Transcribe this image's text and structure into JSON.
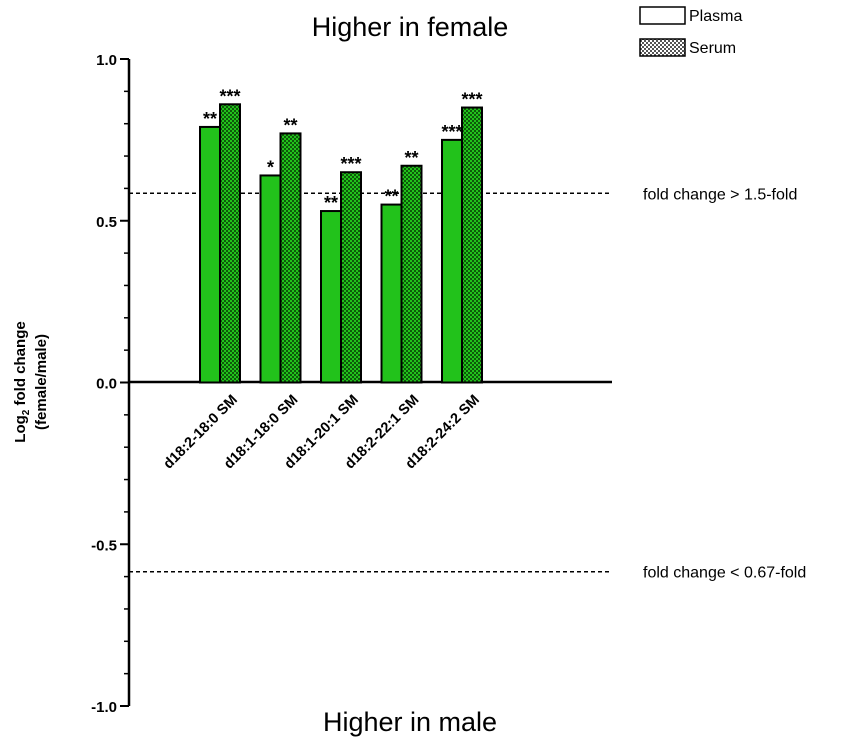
{
  "chart_data": {
    "type": "bar",
    "top_annotation": "Higher in female",
    "bottom_annotation": "Higher in male",
    "ylabel_line1_main": "Log",
    "ylabel_line1_sub": "2",
    "ylabel_line1_rest": " fold change",
    "ylabel_line2": "(female/male)",
    "ylim": [
      -1.0,
      1.0
    ],
    "yticks": [
      1.0,
      0.5,
      0.0,
      -0.5,
      -1.0
    ],
    "ytick_labels": [
      "1.0",
      "0.5",
      "0.0",
      "-0.5",
      "-1.0"
    ],
    "categories": [
      "d18:2-18:0 SM",
      "d18:1-18:0 SM",
      "d18:1-20:1 SM",
      "d18:2-22:1 SM",
      "d18:2-24:2 SM"
    ],
    "series": [
      {
        "name": "Plasma",
        "color": "#22c21b",
        "pattern": "solid",
        "values": [
          0.79,
          0.64,
          0.53,
          0.55,
          0.75
        ],
        "significance": [
          "**",
          "*",
          "**",
          "**",
          "***"
        ]
      },
      {
        "name": "Serum",
        "color": "#22c21b",
        "pattern": "crosshatch",
        "values": [
          0.86,
          0.77,
          0.65,
          0.67,
          0.85
        ],
        "significance": [
          "***",
          "**",
          "***",
          "**",
          "***"
        ]
      }
    ],
    "reference_lines": [
      {
        "value": 0.585,
        "label": "fold change > 1.5-fold",
        "style": "dashed"
      },
      {
        "value": -0.585,
        "label": "fold change < 0.67-fold",
        "style": "dashed"
      }
    ],
    "legend_position": "top-right",
    "grid": false
  }
}
